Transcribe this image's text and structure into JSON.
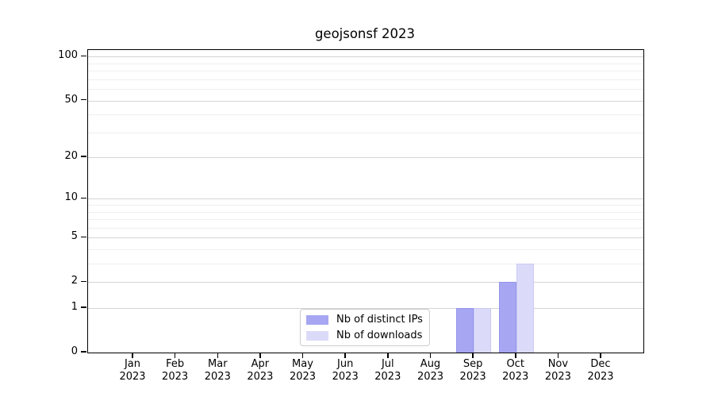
{
  "chart_data": {
    "type": "bar",
    "title": "geojsonsf 2023",
    "categories": [
      "Jan",
      "Feb",
      "Mar",
      "Apr",
      "May",
      "Jun",
      "Jul",
      "Aug",
      "Sep",
      "Oct",
      "Nov",
      "Dec"
    ],
    "category_year": "2023",
    "series": [
      {
        "name": "Nb of distinct IPs",
        "color": "#a6a6f2",
        "edge_color": "#9595ec",
        "values": [
          0,
          0,
          0,
          0,
          0,
          0,
          0,
          0,
          1,
          2,
          0,
          0
        ]
      },
      {
        "name": "Nb of downloads",
        "color": "#dbdbf9",
        "edge_color": "#cacaf4",
        "values": [
          0,
          0,
          0,
          0,
          0,
          0,
          0,
          0,
          1,
          3,
          0,
          0
        ]
      }
    ],
    "xlabel": "",
    "ylabel": "",
    "yscale": "log1p",
    "ylim": [
      0,
      111
    ],
    "yticks": [
      0,
      1,
      2,
      5,
      10,
      20,
      50,
      100
    ],
    "minor_gridlines": [
      3,
      4,
      6,
      7,
      8,
      9,
      30,
      40,
      60,
      70,
      80,
      90
    ],
    "grid": {
      "major_color": "#d4d4d4",
      "minor_color": "#efefef",
      "on": true
    },
    "legend": {
      "position": "lower center"
    }
  }
}
